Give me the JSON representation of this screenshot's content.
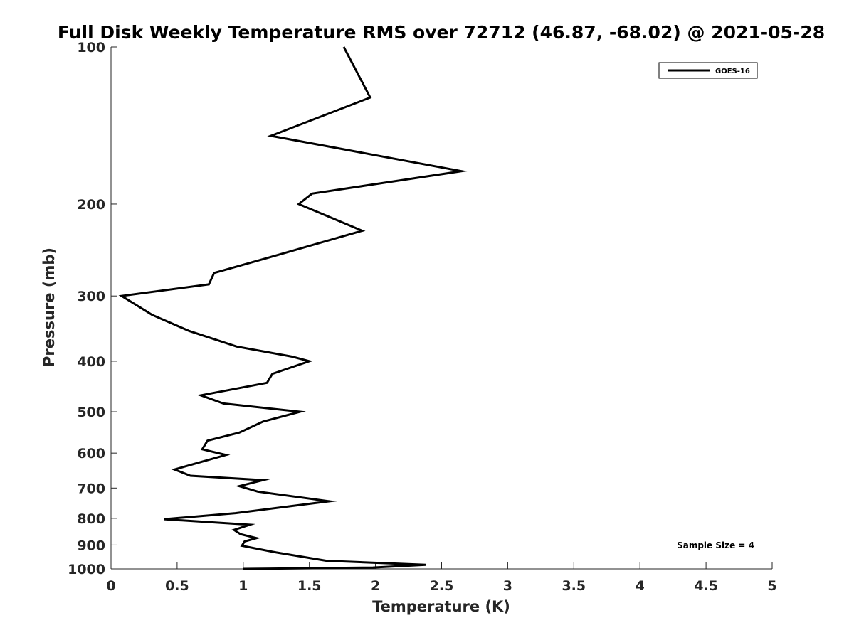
{
  "chart_data": {
    "type": "line",
    "title": "Full Disk Weekly Temperature RMS over 72712 (46.87, -68.02) @ 2021-05-28",
    "xlabel": "Temperature (K)",
    "ylabel": "Pressure (mb)",
    "xlim": [
      0,
      5
    ],
    "ylim": [
      100,
      1000
    ],
    "y_scale": "log",
    "y_reversed": true,
    "x_ticks": [
      0,
      0.5,
      1,
      1.5,
      2,
      2.5,
      3,
      3.5,
      4,
      4.5,
      5
    ],
    "x_tick_labels": [
      "0",
      "0.5",
      "1",
      "1.5",
      "2",
      "2.5",
      "3",
      "3.5",
      "4",
      "4.5",
      "5"
    ],
    "y_ticks": [
      100,
      200,
      300,
      400,
      500,
      600,
      700,
      800,
      900,
      1000
    ],
    "y_tick_labels": [
      "100",
      "200",
      "300",
      "400",
      "500",
      "600",
      "700",
      "800",
      "900",
      "1000"
    ],
    "grid": false,
    "legend_position": "top-right",
    "series": [
      {
        "name": "GOES-16",
        "color": "#000000",
        "points": [
          [
            1.76,
            100
          ],
          [
            1.96,
            125
          ],
          [
            1.21,
            148
          ],
          [
            2.65,
            173
          ],
          [
            1.52,
            191
          ],
          [
            1.42,
            200
          ],
          [
            1.9,
            225
          ],
          [
            1.27,
            250
          ],
          [
            0.78,
            271
          ],
          [
            0.74,
            285
          ],
          [
            0.08,
            300
          ],
          [
            0.31,
            326
          ],
          [
            0.59,
            350
          ],
          [
            0.95,
            375
          ],
          [
            1.37,
            392
          ],
          [
            1.5,
            400
          ],
          [
            1.22,
            423
          ],
          [
            1.18,
            440
          ],
          [
            0.68,
            465
          ],
          [
            0.85,
            482
          ],
          [
            1.43,
            500
          ],
          [
            1.15,
            522
          ],
          [
            0.97,
            548
          ],
          [
            0.73,
            568
          ],
          [
            0.69,
            590
          ],
          [
            0.87,
            605
          ],
          [
            0.72,
            620
          ],
          [
            0.48,
            645
          ],
          [
            0.6,
            663
          ],
          [
            1.15,
            676
          ],
          [
            0.97,
            694
          ],
          [
            1.11,
            711
          ],
          [
            1.65,
            742
          ],
          [
            0.94,
            782
          ],
          [
            0.4,
            803
          ],
          [
            1.05,
            823
          ],
          [
            0.93,
            842
          ],
          [
            0.98,
            858
          ],
          [
            1.1,
            873
          ],
          [
            1.01,
            886
          ],
          [
            0.99,
            903
          ],
          [
            1.25,
            930
          ],
          [
            1.63,
            965
          ],
          [
            2.38,
            982
          ],
          [
            1.98,
            994
          ],
          [
            1.0,
            1000
          ]
        ]
      }
    ],
    "annotation": "Sample Size = 4"
  }
}
